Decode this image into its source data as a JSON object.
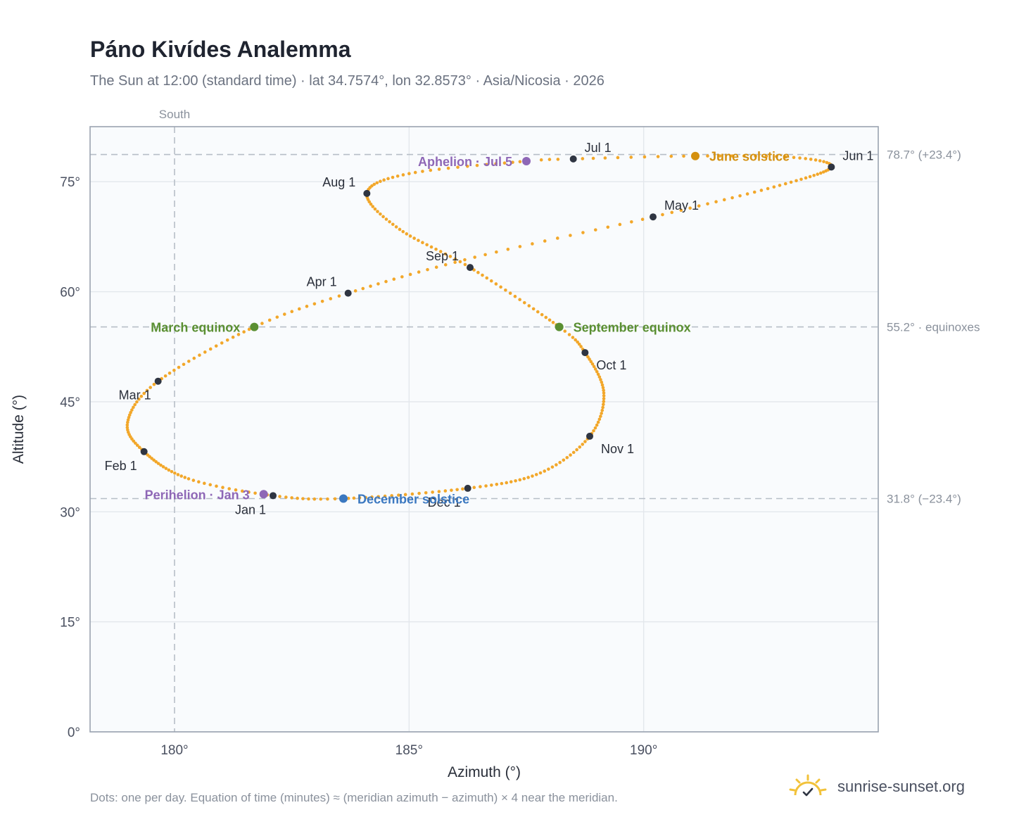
{
  "header": {
    "title": "Páno Kivídes Analemma",
    "subtitle": "The Sun at 12:00 (standard time) · lat 34.7574°, lon 32.8573° · Asia/Nicosia · 2026"
  },
  "footer": {
    "note": "Dots: one per day. Equation of time (minutes) ≈ (meridian azimuth − azimuth) × 4 near the meridian.",
    "brand": "sunrise-sunset.org",
    "logo_icon": "sun-logo-icon"
  },
  "colors": {
    "path": "#f2a72a",
    "month_marker": "#2f3542",
    "equinox": "#5a8f32",
    "june_solstice": "#d4900f",
    "december_solstice": "#3b78c0",
    "apsides": "#8e67b6",
    "plot_bg": "#f9fbfd",
    "grid": "#e3e7ec",
    "frame": "#9aa3b0",
    "ref_line": "#b7bec7"
  },
  "chart_data": {
    "type": "scatter",
    "title": "Páno Kivídes Analemma",
    "xlabel": "Azimuth (°)",
    "ylabel": "Altitude (°)",
    "xlim": [
      178.2,
      195.0
    ],
    "ylim": [
      0,
      82.5
    ],
    "xticks": [
      180,
      185,
      190
    ],
    "xtick_labels": [
      "180°",
      "185°",
      "190°"
    ],
    "yticks": [
      0,
      15,
      30,
      45,
      60,
      75
    ],
    "ytick_labels": [
      "0°",
      "15°",
      "30°",
      "45°",
      "60°",
      "75°"
    ],
    "grid": true,
    "meridian": {
      "x": 180,
      "label": "South"
    },
    "reference_lines": [
      {
        "y": 78.7,
        "label": "78.7° (+23.4°)"
      },
      {
        "y": 55.2,
        "label": "55.2° · equinoxes"
      },
      {
        "y": 31.8,
        "label": "31.8° (−23.4°)"
      }
    ],
    "daily_path_anchor_points": [
      {
        "day": 1,
        "az": 182.1,
        "alt": 32.2
      },
      {
        "day": 15,
        "az": 180.3,
        "alt": 34.5
      },
      {
        "day": 32,
        "az": 179.35,
        "alt": 38.2
      },
      {
        "day": 45,
        "az": 179.0,
        "alt": 42.2
      },
      {
        "day": 60,
        "az": 179.65,
        "alt": 47.8
      },
      {
        "day": 79,
        "az": 181.7,
        "alt": 55.2
      },
      {
        "day": 91,
        "az": 183.7,
        "alt": 59.8
      },
      {
        "day": 106,
        "az": 186.4,
        "alt": 64.7
      },
      {
        "day": 121,
        "az": 190.2,
        "alt": 70.2
      },
      {
        "day": 137,
        "az": 192.9,
        "alt": 74.5
      },
      {
        "day": 152,
        "az": 194.0,
        "alt": 77.0
      },
      {
        "day": 163,
        "az": 193.2,
        "alt": 78.3
      },
      {
        "day": 172,
        "az": 191.1,
        "alt": 78.5
      },
      {
        "day": 182,
        "az": 188.5,
        "alt": 78.1
      },
      {
        "day": 186,
        "az": 187.5,
        "alt": 77.8
      },
      {
        "day": 200,
        "az": 185.0,
        "alt": 76.1
      },
      {
        "day": 213,
        "az": 184.1,
        "alt": 73.4
      },
      {
        "day": 228,
        "az": 184.8,
        "alt": 68.5
      },
      {
        "day": 244,
        "az": 186.3,
        "alt": 63.3
      },
      {
        "day": 265,
        "az": 188.2,
        "alt": 55.2
      },
      {
        "day": 274,
        "az": 188.75,
        "alt": 51.7
      },
      {
        "day": 290,
        "az": 189.15,
        "alt": 46.2
      },
      {
        "day": 305,
        "az": 188.85,
        "alt": 40.3
      },
      {
        "day": 320,
        "az": 187.8,
        "alt": 35.3
      },
      {
        "day": 335,
        "az": 186.25,
        "alt": 33.2
      },
      {
        "day": 355,
        "az": 183.6,
        "alt": 31.8
      },
      {
        "day": 366,
        "az": 182.1,
        "alt": 32.2
      }
    ],
    "month_markers": [
      {
        "label": "Jan 1",
        "az": 182.1,
        "alt": 32.2,
        "label_pos": "below-left"
      },
      {
        "label": "Feb 1",
        "az": 179.35,
        "alt": 38.2,
        "label_pos": "below-left"
      },
      {
        "label": "Mar 1",
        "az": 179.65,
        "alt": 47.8,
        "label_pos": "below-left"
      },
      {
        "label": "Apr 1",
        "az": 183.7,
        "alt": 59.8,
        "label_pos": "above-left"
      },
      {
        "label": "May 1",
        "az": 190.2,
        "alt": 70.2,
        "label_pos": "above-right"
      },
      {
        "label": "Jun 1",
        "az": 194.0,
        "alt": 77.0,
        "label_pos": "above-right"
      },
      {
        "label": "Jul 1",
        "az": 188.5,
        "alt": 78.1,
        "label_pos": "above-right"
      },
      {
        "label": "Aug 1",
        "az": 184.1,
        "alt": 73.4,
        "label_pos": "above-left"
      },
      {
        "label": "Sep 1",
        "az": 186.3,
        "alt": 63.3,
        "label_pos": "above-left"
      },
      {
        "label": "Oct 1",
        "az": 188.75,
        "alt": 51.7,
        "label_pos": "below-right"
      },
      {
        "label": "Nov 1",
        "az": 188.85,
        "alt": 40.3,
        "label_pos": "below-right"
      },
      {
        "label": "Dec 1",
        "az": 186.25,
        "alt": 33.2,
        "label_pos": "below-left"
      }
    ],
    "events": [
      {
        "label": "March equinox",
        "az": 181.7,
        "alt": 55.2,
        "kind": "equinox",
        "label_side": "left"
      },
      {
        "label": "September equinox",
        "az": 188.2,
        "alt": 55.2,
        "kind": "equinox",
        "label_side": "right"
      },
      {
        "label": "June solstice",
        "az": 191.1,
        "alt": 78.5,
        "kind": "june_solstice",
        "label_side": "right"
      },
      {
        "label": "December solstice",
        "az": 183.6,
        "alt": 31.8,
        "kind": "december_solstice",
        "label_side": "right"
      },
      {
        "label": "Aphelion · Jul 5",
        "az": 187.5,
        "alt": 77.8,
        "kind": "apsides",
        "label_side": "left"
      },
      {
        "label": "Perihelion · Jan 3",
        "az": 181.9,
        "alt": 32.4,
        "kind": "apsides",
        "label_side": "left"
      }
    ]
  }
}
